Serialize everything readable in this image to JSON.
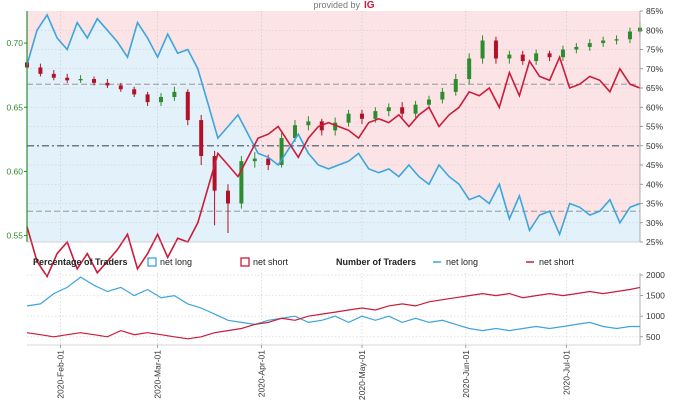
{
  "provider": {
    "label": "provided by",
    "brand": "IG"
  },
  "colors": {
    "net_long": "#3da5dc",
    "net_short": "#cc1b3a",
    "long_fill": "#e3f1fa",
    "short_fill": "#fbe3e6",
    "candle_up": "#2e8b2e",
    "candle_down": "#b1122a",
    "price_axis": "#2e8b2e"
  },
  "chart_data": [
    {
      "type": "line",
      "title": "",
      "x_tick_labels": [
        "2020-Feb-01",
        "2020-Mar-01",
        "2020-Apr-01",
        "2020-May-01",
        "2020-Jun-01",
        "2020-Jul-01"
      ],
      "x_range": [
        "2020-01-22",
        "2020-07-23"
      ],
      "price_axis": {
        "side": "left",
        "ticks": [
          "0.70",
          "0.65",
          "0.60",
          "0.55"
        ],
        "range": [
          0.545,
          0.725
        ]
      },
      "percent_axis": {
        "side": "right",
        "ticks": [
          "85%",
          "80%",
          "75%",
          "70%",
          "65%",
          "60%",
          "55%",
          "50%",
          "45%",
          "40%",
          "35%",
          "30%",
          "25%"
        ],
        "range": [
          25,
          85
        ]
      },
      "reference_lines": [
        66,
        50,
        33
      ],
      "grid": true,
      "series": [
        {
          "name": "net long",
          "kind": "percent",
          "x": [
            "2020-01-22",
            "2020-01-25",
            "2020-01-28",
            "2020-01-31",
            "2020-02-03",
            "2020-02-06",
            "2020-02-09",
            "2020-02-12",
            "2020-02-15",
            "2020-02-18",
            "2020-02-21",
            "2020-02-24",
            "2020-02-27",
            "2020-03-01",
            "2020-03-04",
            "2020-03-07",
            "2020-03-10",
            "2020-03-13",
            "2020-03-16",
            "2020-03-19",
            "2020-03-22",
            "2020-03-25",
            "2020-03-28",
            "2020-03-31",
            "2020-04-03",
            "2020-04-06",
            "2020-04-09",
            "2020-04-12",
            "2020-04-15",
            "2020-04-18",
            "2020-04-21",
            "2020-04-24",
            "2020-04-27",
            "2020-04-30",
            "2020-05-03",
            "2020-05-06",
            "2020-05-09",
            "2020-05-12",
            "2020-05-15",
            "2020-05-18",
            "2020-05-21",
            "2020-05-24",
            "2020-05-27",
            "2020-05-30",
            "2020-06-02",
            "2020-06-05",
            "2020-06-08",
            "2020-06-11",
            "2020-06-14",
            "2020-06-17",
            "2020-06-20",
            "2020-06-23",
            "2020-06-26",
            "2020-06-29",
            "2020-07-02",
            "2020-07-05",
            "2020-07-08",
            "2020-07-11",
            "2020-07-14",
            "2020-07-17",
            "2020-07-20",
            "2020-07-23"
          ],
          "values": [
            71,
            80,
            84,
            78,
            75,
            82,
            78,
            83,
            80,
            77,
            73,
            82,
            78,
            73,
            79,
            74,
            75,
            70,
            61,
            52,
            55,
            58,
            53,
            48,
            47,
            45,
            49,
            53,
            48,
            45,
            44,
            45,
            46,
            48,
            44,
            43,
            44,
            42,
            45,
            42,
            40,
            45,
            42,
            40,
            36,
            37,
            35,
            40,
            31,
            37,
            28,
            32,
            33,
            27,
            35,
            34,
            32,
            33,
            36,
            30,
            34,
            35
          ]
        },
        {
          "name": "net short",
          "kind": "percent",
          "x": [
            "2020-01-22",
            "2020-01-25",
            "2020-01-28",
            "2020-01-31",
            "2020-02-03",
            "2020-02-06",
            "2020-02-09",
            "2020-02-12",
            "2020-02-15",
            "2020-02-18",
            "2020-02-21",
            "2020-02-24",
            "2020-02-27",
            "2020-03-01",
            "2020-03-04",
            "2020-03-07",
            "2020-03-10",
            "2020-03-13",
            "2020-03-16",
            "2020-03-19",
            "2020-03-22",
            "2020-03-25",
            "2020-03-28",
            "2020-03-31",
            "2020-04-03",
            "2020-04-06",
            "2020-04-09",
            "2020-04-12",
            "2020-04-15",
            "2020-04-18",
            "2020-04-21",
            "2020-04-24",
            "2020-04-27",
            "2020-04-30",
            "2020-05-03",
            "2020-05-06",
            "2020-05-09",
            "2020-05-12",
            "2020-05-15",
            "2020-05-18",
            "2020-05-21",
            "2020-05-24",
            "2020-05-27",
            "2020-05-30",
            "2020-06-02",
            "2020-06-05",
            "2020-06-08",
            "2020-06-11",
            "2020-06-14",
            "2020-06-17",
            "2020-06-20",
            "2020-06-23",
            "2020-06-26",
            "2020-06-29",
            "2020-07-02",
            "2020-07-05",
            "2020-07-08",
            "2020-07-11",
            "2020-07-14",
            "2020-07-17",
            "2020-07-20",
            "2020-07-23"
          ],
          "values": [
            29,
            20,
            16,
            22,
            25,
            18,
            22,
            17,
            20,
            23,
            27,
            18,
            22,
            27,
            21,
            26,
            25,
            30,
            39,
            48,
            45,
            42,
            47,
            52,
            53,
            55,
            51,
            47,
            52,
            55,
            56,
            55,
            54,
            52,
            56,
            57,
            56,
            58,
            55,
            58,
            60,
            55,
            58,
            60,
            64,
            63,
            65,
            60,
            69,
            63,
            72,
            68,
            67,
            73,
            65,
            66,
            68,
            67,
            64,
            70,
            66,
            65
          ]
        },
        {
          "name": "price",
          "kind": "candlestick",
          "x": [
            "2020-01-22",
            "2020-01-26",
            "2020-01-30",
            "2020-02-03",
            "2020-02-07",
            "2020-02-11",
            "2020-02-15",
            "2020-02-19",
            "2020-02-23",
            "2020-02-27",
            "2020-03-02",
            "2020-03-06",
            "2020-03-10",
            "2020-03-14",
            "2020-03-18",
            "2020-03-22",
            "2020-03-26",
            "2020-03-30",
            "2020-04-03",
            "2020-04-07",
            "2020-04-11",
            "2020-04-15",
            "2020-04-19",
            "2020-04-23",
            "2020-04-27",
            "2020-05-01",
            "2020-05-05",
            "2020-05-09",
            "2020-05-13",
            "2020-05-17",
            "2020-05-21",
            "2020-05-25",
            "2020-05-29",
            "2020-06-02",
            "2020-06-06",
            "2020-06-10",
            "2020-06-14",
            "2020-06-18",
            "2020-06-22",
            "2020-06-26",
            "2020-06-30",
            "2020-07-04",
            "2020-07-08",
            "2020-07-12",
            "2020-07-16",
            "2020-07-20",
            "2020-07-23"
          ],
          "open": [
            0.685,
            0.681,
            0.676,
            0.673,
            0.671,
            0.672,
            0.669,
            0.667,
            0.664,
            0.66,
            0.654,
            0.658,
            0.662,
            0.64,
            0.612,
            0.585,
            0.575,
            0.608,
            0.61,
            0.605,
            0.626,
            0.636,
            0.639,
            0.632,
            0.638,
            0.645,
            0.641,
            0.647,
            0.65,
            0.645,
            0.652,
            0.656,
            0.662,
            0.672,
            0.688,
            0.702,
            0.688,
            0.691,
            0.686,
            0.692,
            0.689,
            0.695,
            0.697,
            0.7,
            0.702,
            0.703,
            0.709
          ],
          "close": [
            0.681,
            0.676,
            0.673,
            0.671,
            0.672,
            0.669,
            0.667,
            0.664,
            0.66,
            0.654,
            0.658,
            0.662,
            0.64,
            0.612,
            0.585,
            0.575,
            0.608,
            0.61,
            0.605,
            0.626,
            0.636,
            0.639,
            0.632,
            0.638,
            0.645,
            0.641,
            0.647,
            0.65,
            0.645,
            0.652,
            0.656,
            0.662,
            0.672,
            0.688,
            0.702,
            0.688,
            0.691,
            0.686,
            0.692,
            0.689,
            0.695,
            0.697,
            0.7,
            0.702,
            0.703,
            0.709,
            0.712
          ],
          "high": [
            0.688,
            0.684,
            0.679,
            0.676,
            0.675,
            0.674,
            0.672,
            0.669,
            0.666,
            0.662,
            0.661,
            0.666,
            0.664,
            0.644,
            0.616,
            0.59,
            0.612,
            0.615,
            0.613,
            0.63,
            0.64,
            0.643,
            0.641,
            0.642,
            0.648,
            0.648,
            0.65,
            0.653,
            0.654,
            0.655,
            0.659,
            0.665,
            0.676,
            0.692,
            0.706,
            0.705,
            0.694,
            0.694,
            0.695,
            0.694,
            0.698,
            0.7,
            0.703,
            0.705,
            0.706,
            0.712,
            0.716
          ],
          "low": [
            0.679,
            0.674,
            0.671,
            0.669,
            0.669,
            0.667,
            0.665,
            0.662,
            0.658,
            0.651,
            0.651,
            0.655,
            0.636,
            0.605,
            0.558,
            0.552,
            0.571,
            0.603,
            0.601,
            0.603,
            0.623,
            0.632,
            0.628,
            0.628,
            0.635,
            0.637,
            0.638,
            0.643,
            0.642,
            0.642,
            0.65,
            0.653,
            0.659,
            0.668,
            0.684,
            0.684,
            0.684,
            0.683,
            0.683,
            0.686,
            0.686,
            0.692,
            0.694,
            0.697,
            0.699,
            0.7,
            0.706
          ]
        }
      ]
    },
    {
      "type": "line",
      "title": "",
      "legend": {
        "percentage_title": "Percentage of Traders",
        "number_title": "Number of Traders",
        "items": [
          "net long",
          "net short",
          "net long",
          "net short"
        ]
      },
      "y_axis": {
        "side": "right",
        "ticks": [
          "2000",
          "1500",
          "1000",
          "500"
        ],
        "range": [
          300,
          2050
        ]
      },
      "x_range": [
        "2020-01-22",
        "2020-07-23"
      ],
      "grid": true,
      "series": [
        {
          "name": "net long",
          "x": [
            "2020-01-22",
            "2020-01-26",
            "2020-01-30",
            "2020-02-03",
            "2020-02-07",
            "2020-02-11",
            "2020-02-15",
            "2020-02-19",
            "2020-02-23",
            "2020-02-27",
            "2020-03-02",
            "2020-03-06",
            "2020-03-10",
            "2020-03-14",
            "2020-03-18",
            "2020-03-22",
            "2020-03-26",
            "2020-03-30",
            "2020-04-03",
            "2020-04-07",
            "2020-04-11",
            "2020-04-15",
            "2020-04-19",
            "2020-04-23",
            "2020-04-27",
            "2020-05-01",
            "2020-05-05",
            "2020-05-09",
            "2020-05-13",
            "2020-05-17",
            "2020-05-21",
            "2020-05-25",
            "2020-05-29",
            "2020-06-02",
            "2020-06-06",
            "2020-06-10",
            "2020-06-14",
            "2020-06-18",
            "2020-06-22",
            "2020-06-26",
            "2020-06-30",
            "2020-07-04",
            "2020-07-08",
            "2020-07-12",
            "2020-07-16",
            "2020-07-20",
            "2020-07-23"
          ],
          "values": [
            1250,
            1300,
            1550,
            1700,
            1950,
            1750,
            1600,
            1700,
            1500,
            1650,
            1450,
            1500,
            1300,
            1200,
            1050,
            900,
            850,
            800,
            900,
            950,
            1000,
            850,
            900,
            1000,
            850,
            1000,
            900,
            1000,
            850,
            950,
            850,
            900,
            800,
            700,
            650,
            700,
            650,
            700,
            750,
            700,
            750,
            800,
            850,
            750,
            700,
            750,
            750
          ]
        },
        {
          "name": "net short",
          "x": [
            "2020-01-22",
            "2020-01-26",
            "2020-01-30",
            "2020-02-03",
            "2020-02-07",
            "2020-02-11",
            "2020-02-15",
            "2020-02-19",
            "2020-02-23",
            "2020-02-27",
            "2020-03-02",
            "2020-03-06",
            "2020-03-10",
            "2020-03-14",
            "2020-03-18",
            "2020-03-22",
            "2020-03-26",
            "2020-03-30",
            "2020-04-03",
            "2020-04-07",
            "2020-04-11",
            "2020-04-15",
            "2020-04-19",
            "2020-04-23",
            "2020-04-27",
            "2020-05-01",
            "2020-05-05",
            "2020-05-09",
            "2020-05-13",
            "2020-05-17",
            "2020-05-21",
            "2020-05-25",
            "2020-05-29",
            "2020-06-02",
            "2020-06-06",
            "2020-06-10",
            "2020-06-14",
            "2020-06-18",
            "2020-06-22",
            "2020-06-26",
            "2020-06-30",
            "2020-07-04",
            "2020-07-08",
            "2020-07-12",
            "2020-07-16",
            "2020-07-20",
            "2020-07-23"
          ],
          "values": [
            600,
            550,
            500,
            550,
            600,
            550,
            500,
            650,
            550,
            600,
            550,
            500,
            450,
            500,
            600,
            650,
            700,
            800,
            850,
            950,
            900,
            1000,
            1050,
            1100,
            1150,
            1200,
            1150,
            1250,
            1300,
            1250,
            1350,
            1400,
            1450,
            1500,
            1550,
            1500,
            1550,
            1450,
            1500,
            1550,
            1500,
            1550,
            1600,
            1550,
            1600,
            1650,
            1700
          ]
        }
      ]
    }
  ]
}
